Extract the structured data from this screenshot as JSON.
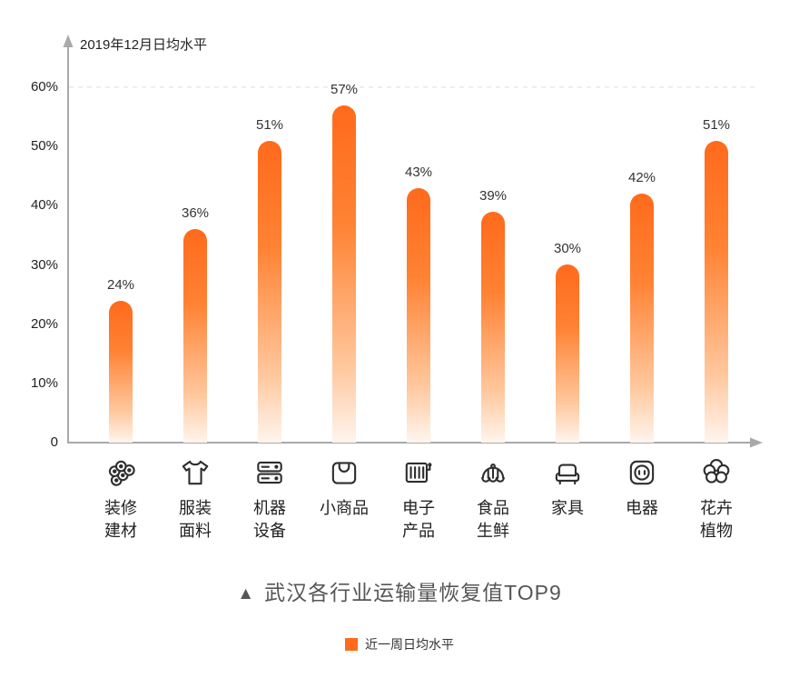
{
  "chart_data": {
    "type": "bar",
    "title": "武汉各行业运输量恢复值TOP9",
    "title_marker": "▲",
    "y_axis_title": "2019年12月日均水平",
    "legend": {
      "label": "近一周日均水平",
      "color": "#FF6A1C"
    },
    "categories": [
      "装修建材",
      "服装面料",
      "机器设备",
      "小商品",
      "电子产品",
      "食品生鲜",
      "家具",
      "电器",
      "花卉植物"
    ],
    "category_lines": [
      [
        "装修",
        "建材"
      ],
      [
        "服装",
        "面料"
      ],
      [
        "机器",
        "设备"
      ],
      [
        "小商品"
      ],
      [
        "电子",
        "产品"
      ],
      [
        "食品",
        "生鲜"
      ],
      [
        "家具"
      ],
      [
        "电器"
      ],
      [
        "花卉",
        "植物"
      ]
    ],
    "icons": [
      "building-materials-icon",
      "tshirt-icon",
      "machinery-icon",
      "shopping-bag-icon",
      "electronics-icon",
      "food-basket-icon",
      "sofa-icon",
      "power-socket-icon",
      "flower-icon"
    ],
    "values": [
      24,
      36,
      51,
      57,
      43,
      39,
      30,
      42,
      51
    ],
    "value_labels": [
      "24%",
      "36%",
      "51%",
      "57%",
      "43%",
      "39%",
      "30%",
      "42%",
      "51%"
    ],
    "y_ticks": [
      {
        "label": "60%",
        "value": 60
      },
      {
        "label": "50%",
        "value": 50
      },
      {
        "label": "40%",
        "value": 40
      },
      {
        "label": "30%",
        "value": 30
      },
      {
        "label": "20%",
        "value": 20
      },
      {
        "label": "10%",
        "value": 10
      },
      {
        "label": "0",
        "value": 0
      }
    ],
    "ylim": [
      0,
      60
    ],
    "grid_dashed_at": 60,
    "bar_gradient": [
      "#FF6A1C",
      "#FF8233",
      "#FFC89E",
      "#FFF5EE"
    ],
    "axis_color": "#A9A9A9",
    "grid_color": "#DDDDDD"
  }
}
